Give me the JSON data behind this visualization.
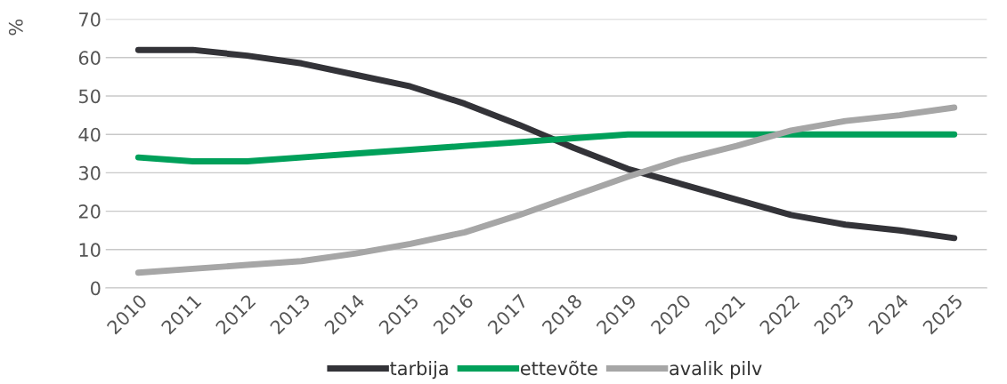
{
  "chart_data": {
    "type": "line",
    "ylabel": "%",
    "categories": [
      "2010",
      "2011",
      "2012",
      "2013",
      "2014",
      "2015",
      "2016",
      "2017",
      "2018",
      "2019",
      "2020",
      "2021",
      "2022",
      "2023",
      "2024",
      "2025"
    ],
    "series": [
      {
        "name": "tarbija",
        "color": "#333338",
        "values": [
          62,
          62,
          60.5,
          58.5,
          55.5,
          52.5,
          48,
          42.5,
          36.5,
          31,
          27,
          23,
          19,
          16.5,
          15,
          13
        ]
      },
      {
        "name": "ettevõte",
        "color": "#00a05a",
        "values": [
          34,
          33,
          33,
          34,
          35,
          36,
          37,
          38,
          39,
          40,
          40,
          40,
          40,
          40,
          40,
          40
        ]
      },
      {
        "name": "avalik pilv",
        "color": "#a6a6a6",
        "values": [
          4,
          5,
          6,
          7,
          9,
          11.5,
          14.5,
          19,
          24,
          29,
          33.5,
          37,
          41,
          43.5,
          45,
          47
        ]
      }
    ],
    "ylim": [
      0,
      70
    ],
    "yticks": [
      0,
      10,
      20,
      30,
      40,
      50,
      60,
      70
    ],
    "grid": "y",
    "legend": "bottom",
    "marker": "none",
    "line_style": "solid"
  }
}
